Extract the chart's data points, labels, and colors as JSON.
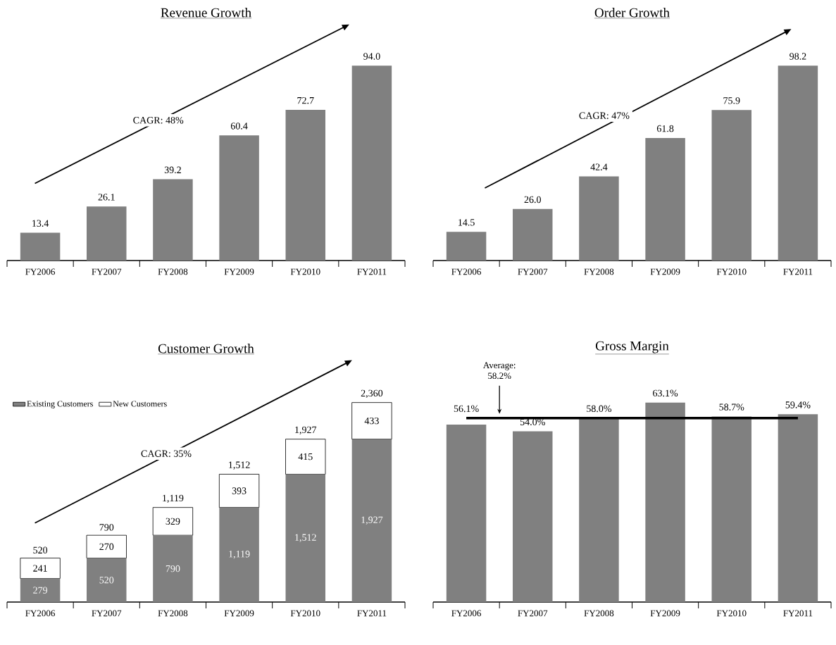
{
  "chart_data": [
    {
      "type": "bar",
      "title": "Revenue Growth",
      "categories": [
        "FY2006",
        "FY2007",
        "FY2008",
        "FY2009",
        "FY2010",
        "FY2011"
      ],
      "values": [
        13.4,
        26.1,
        39.2,
        60.4,
        72.7,
        94.0
      ],
      "color": "#808080",
      "value_labels": [
        "13.4",
        "26.1",
        "39.2",
        "60.4",
        "72.7",
        "94.0"
      ],
      "annotations": [
        "CAGR: 48%"
      ],
      "tick_labels": "x"
    },
    {
      "type": "bar",
      "title": "Order Growth",
      "categories": [
        "FY2006",
        "FY2007",
        "FY2008",
        "FY2009",
        "FY2010",
        "FY2011"
      ],
      "values": [
        14.5,
        26.0,
        42.4,
        61.8,
        75.9,
        98.2
      ],
      "color": "#808080",
      "value_labels": [
        "14.5",
        "26.0",
        "42.4",
        "61.8",
        "75.9",
        "98.2"
      ],
      "annotations": [
        "CAGR: 47%"
      ],
      "tick_labels": "x"
    },
    {
      "type": "bar",
      "title": "Customer Growth",
      "categories": [
        "FY2006",
        "FY2007",
        "FY2008",
        "FY2009",
        "FY2010",
        "FY2011"
      ],
      "stacked": true,
      "series": [
        {
          "name": "Existing Customers",
          "color": "#808080",
          "values": [
            279,
            520,
            790,
            1119,
            1512,
            1927
          ],
          "value_labels": [
            "279",
            "520",
            "790",
            "1,119",
            "1,512",
            "1,927"
          ]
        },
        {
          "name": "New Customers",
          "color": "#ffffff",
          "values": [
            241,
            270,
            329,
            393,
            415,
            433
          ],
          "value_labels": [
            "241",
            "270",
            "329",
            "393",
            "415",
            "433"
          ]
        }
      ],
      "totals": [
        "520",
        "790",
        "1,119",
        "1,512",
        "1,927",
        "2,360"
      ],
      "legend": "top left",
      "annotations": [
        "CAGR: 35%"
      ],
      "tick_labels": "x"
    },
    {
      "type": "bar",
      "title": "Gross Margin",
      "categories": [
        "FY2006",
        "FY2007",
        "FY2008",
        "FY2009",
        "FY2010",
        "FY2011"
      ],
      "values": [
        56.1,
        54.0,
        58.0,
        63.1,
        58.7,
        59.4
      ],
      "color": "#808080",
      "value_labels": [
        "56.1%",
        "54.0%",
        "58.0%",
        "63.1%",
        "58.7%",
        "59.4%"
      ],
      "ref_lines": [
        {
          "axis": "y",
          "value": 58.2,
          "label": "Average: 58.2%",
          "color": "#000000"
        }
      ],
      "tick_labels": "x"
    }
  ]
}
